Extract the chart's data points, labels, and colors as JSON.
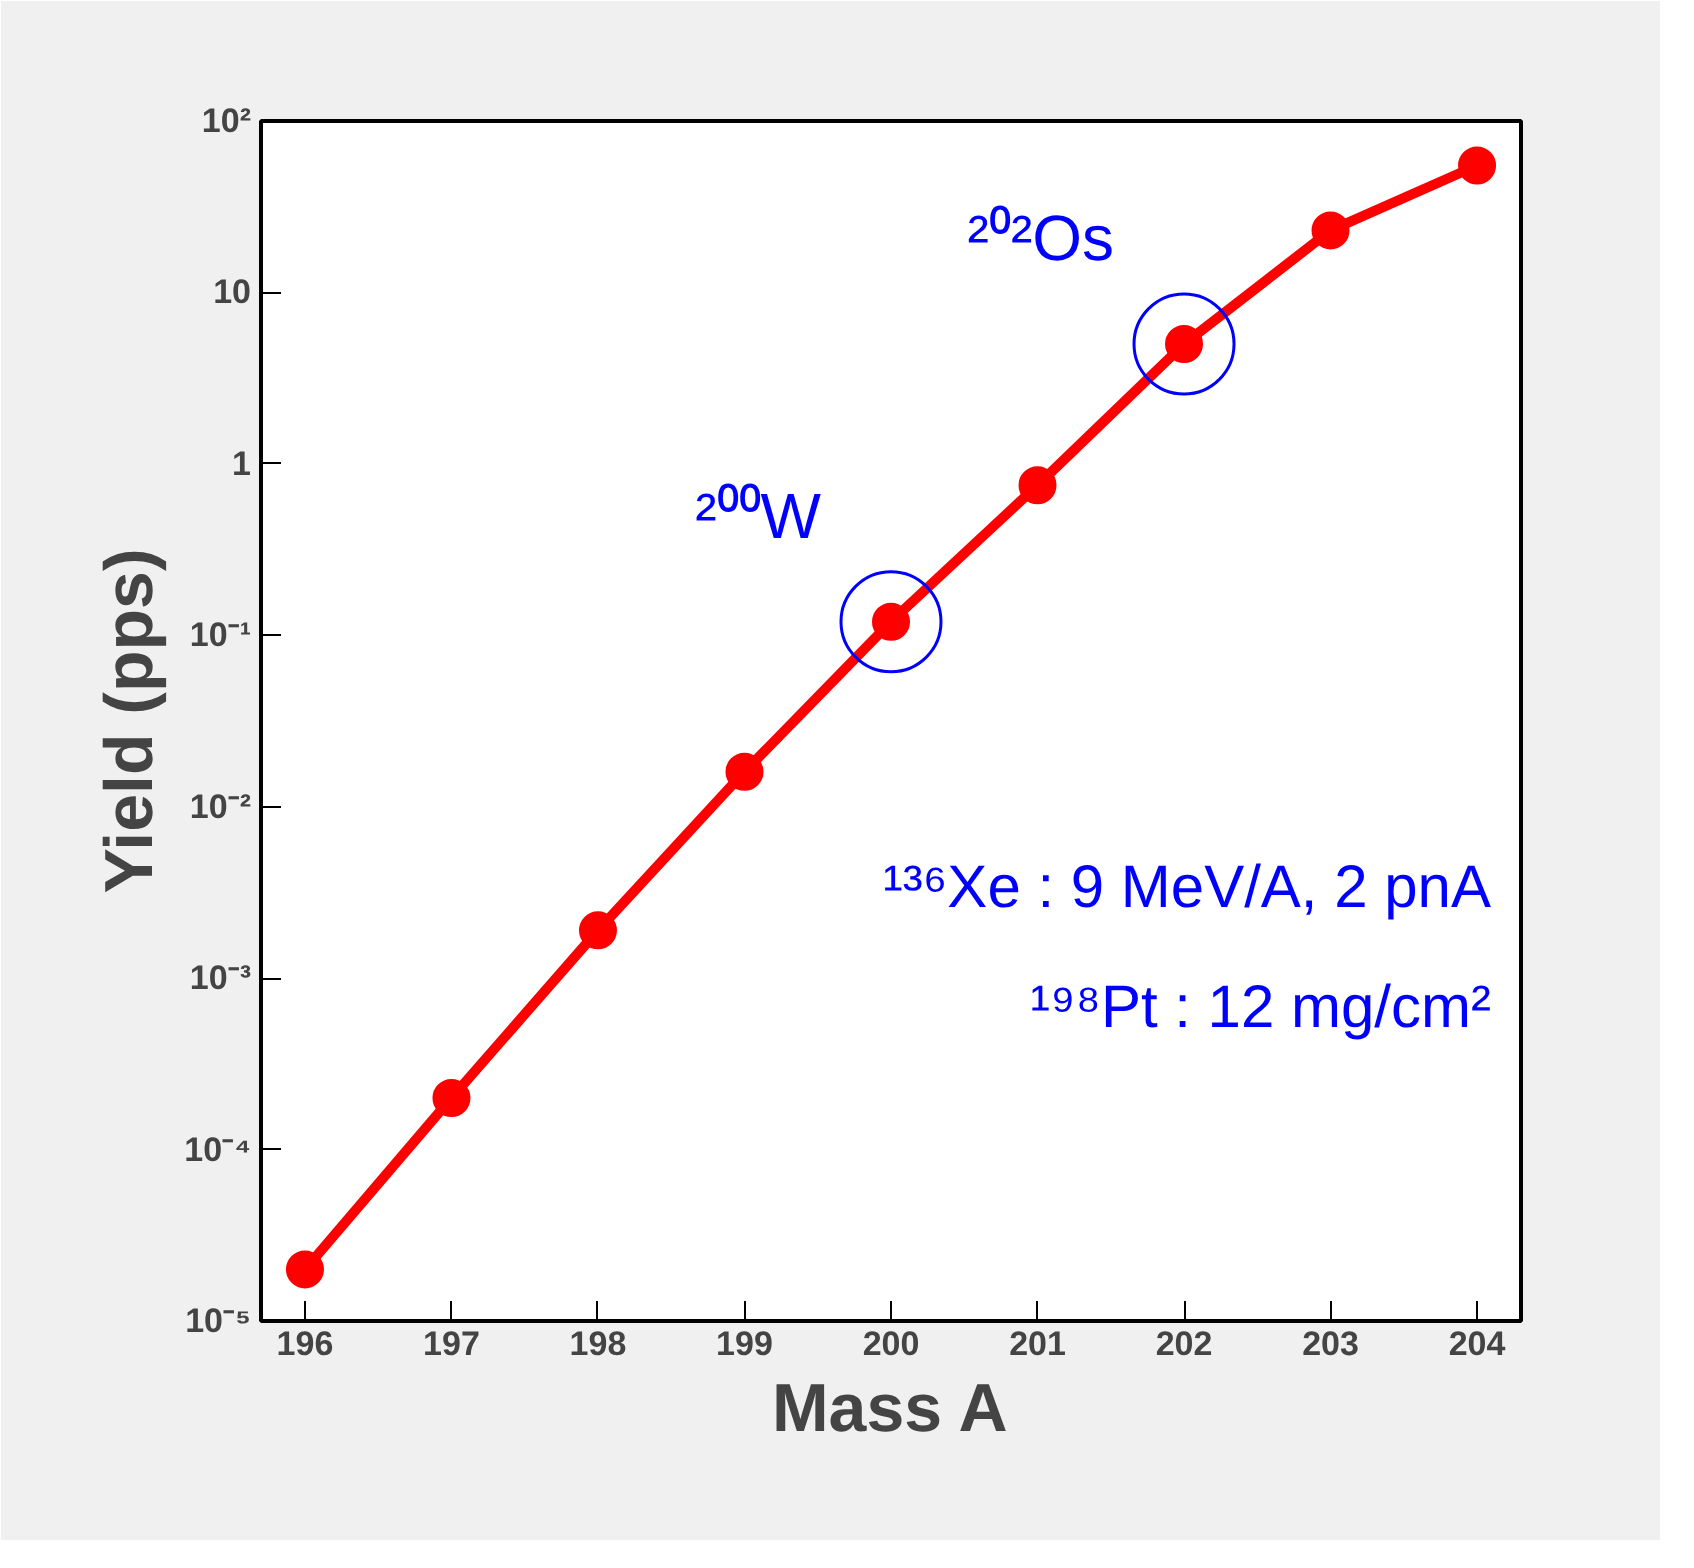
{
  "chart_data": {
    "type": "line",
    "xlabel": "Mass A",
    "ylabel": "Yield (pps)",
    "x": [
      196,
      197,
      198,
      199,
      200,
      201,
      202,
      203,
      204
    ],
    "series": [
      {
        "color": "#ff0000",
        "values": [
          2e-05,
          0.0002,
          0.0019,
          0.016,
          0.12,
          0.75,
          5,
          23,
          55
        ]
      }
    ],
    "xlim": [
      195.7,
      204.3
    ],
    "ylim": [
      1e-05,
      100
    ],
    "xticks": [
      196,
      197,
      198,
      199,
      200,
      201,
      202,
      203,
      204
    ],
    "yticks": [
      {
        "value": 1e-05,
        "label": "10⁻⁵"
      },
      {
        "value": 0.0001,
        "label": "10⁻⁴"
      },
      {
        "value": 0.001,
        "label": "10⁻³"
      },
      {
        "value": 0.01,
        "label": "10⁻²"
      },
      {
        "value": 0.1,
        "label": "10⁻¹"
      },
      1,
      10,
      {
        "value": 100,
        "label": "10²"
      }
    ],
    "log": "y",
    "grid": false,
    "marker": "circle",
    "line_style": "solid",
    "annotations": [
      {
        "text": "²⁰⁰W",
        "x": 200,
        "y": 0.12
      },
      {
        "text": "²⁰²Os",
        "x": 202,
        "y": 5
      },
      "¹³⁶Xe : 9 MeV/A, 2 pnA",
      "¹⁹⁸Pt : 12 mg/cm²"
    ]
  }
}
